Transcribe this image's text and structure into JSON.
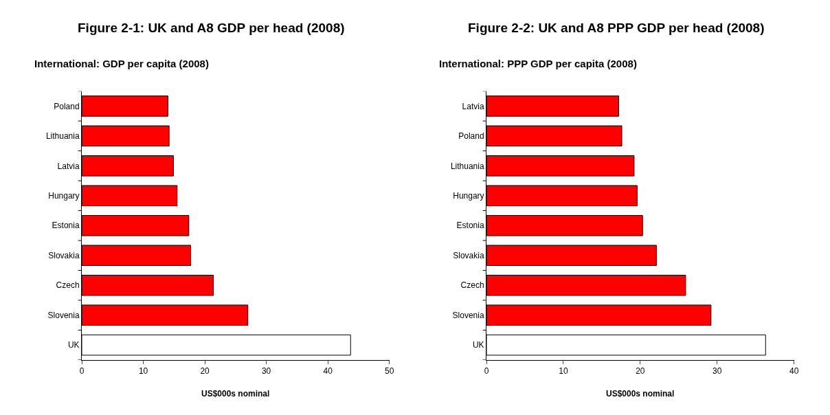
{
  "chart_data": [
    {
      "type": "bar",
      "orientation": "horizontal",
      "title": "Figure 2-1: UK and A8 GDP per head (2008)",
      "subtitle": "International: GDP per capita (2008)",
      "xlabel": "US$000s nominal",
      "categories": [
        "Poland",
        "Lithuania",
        "Latvia",
        "Hungary",
        "Estonia",
        "Slovakia",
        "Czech",
        "Slovenia",
        "UK"
      ],
      "values": [
        14.0,
        14.2,
        14.9,
        15.5,
        17.4,
        17.7,
        21.4,
        27.0,
        43.7
      ],
      "colors": [
        "#ff0000",
        "#ff0000",
        "#ff0000",
        "#ff0000",
        "#ff0000",
        "#ff0000",
        "#ff0000",
        "#ff0000",
        "#ffffff"
      ],
      "xlim": [
        0,
        50
      ],
      "xticks": [
        0,
        10,
        20,
        30,
        40,
        50
      ],
      "grid": false
    },
    {
      "type": "bar",
      "orientation": "horizontal",
      "title": "Figure 2-2: UK and A8 PPP GDP per head (2008)",
      "subtitle": "International: PPP GDP per capita (2008)",
      "xlabel": "US$000s nominal",
      "categories": [
        "Latvia",
        "Poland",
        "Lithuania",
        "Hungary",
        "Estonia",
        "Slovakia",
        "Czech",
        "Slovenia",
        "UK"
      ],
      "values": [
        17.2,
        17.6,
        19.2,
        19.6,
        20.3,
        22.1,
        25.9,
        29.2,
        36.3
      ],
      "colors": [
        "#ff0000",
        "#ff0000",
        "#ff0000",
        "#ff0000",
        "#ff0000",
        "#ff0000",
        "#ff0000",
        "#ff0000",
        "#ffffff"
      ],
      "xlim": [
        0,
        40
      ],
      "xticks": [
        0,
        10,
        20,
        30,
        40
      ],
      "grid": false
    }
  ]
}
